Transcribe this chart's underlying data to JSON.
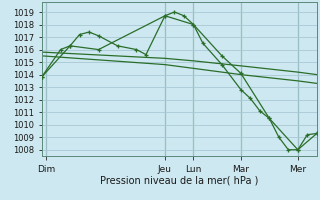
{
  "background_color": "#cde8f0",
  "grid_color": "#a8c8d4",
  "line_color": "#2a6e2a",
  "xlabel": "Pression niveau de la mer( hPa )",
  "ylim": [
    1007.5,
    1019.8
  ],
  "yticks": [
    1008,
    1009,
    1010,
    1011,
    1012,
    1013,
    1014,
    1015,
    1016,
    1017,
    1018,
    1019
  ],
  "day_labels": [
    "Dim",
    "Jeu",
    "Lun",
    "Mar",
    "Mer"
  ],
  "day_positions": [
    0.5,
    13,
    16,
    21,
    27
  ],
  "xlim": [
    0,
    29
  ],
  "series": [
    {
      "x": [
        0,
        13,
        16,
        21,
        27,
        29
      ],
      "y": [
        1015.8,
        1015.3,
        1015.1,
        1014.7,
        1014.2,
        1014.0
      ],
      "with_markers": false,
      "lw": 0.9
    },
    {
      "x": [
        0,
        13,
        16,
        21,
        27,
        29
      ],
      "y": [
        1015.5,
        1014.8,
        1014.5,
        1014.0,
        1013.5,
        1013.3
      ],
      "with_markers": false,
      "lw": 0.9
    },
    {
      "x": [
        0,
        2,
        3,
        4,
        5,
        6,
        8,
        10,
        11,
        13,
        14,
        15,
        16,
        17,
        19,
        21,
        22,
        23,
        24,
        25,
        26,
        27,
        28,
        29
      ],
      "y": [
        1013.8,
        1016.0,
        1016.3,
        1017.2,
        1017.4,
        1017.1,
        1016.3,
        1016.0,
        1015.6,
        1018.7,
        1019.0,
        1018.7,
        1018.0,
        1016.5,
        1014.8,
        1012.8,
        1012.1,
        1011.1,
        1010.5,
        1009.0,
        1008.0,
        1008.0,
        1009.2,
        1009.3
      ],
      "with_markers": true,
      "lw": 0.9
    },
    {
      "x": [
        0,
        3,
        6,
        13,
        16,
        19,
        21,
        24,
        27,
        29
      ],
      "y": [
        1013.8,
        1016.3,
        1016.0,
        1018.7,
        1018.0,
        1015.5,
        1014.1,
        1010.5,
        1008.0,
        1009.3
      ],
      "with_markers": true,
      "lw": 0.9
    }
  ],
  "vlines": [
    0.5,
    13,
    16,
    21,
    27
  ],
  "vline_color": "#5a8a7a",
  "xlabel_fontsize": 7,
  "ytick_fontsize": 6,
  "xtick_fontsize": 6.5
}
